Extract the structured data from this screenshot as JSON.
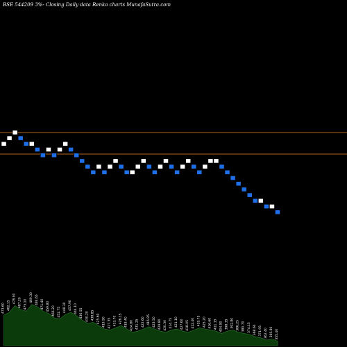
{
  "chart_data": {
    "type": "renko",
    "title": "BSE 544209 3%-  Closing Daily data  Renko  charts MunafaSutra.com",
    "colors": {
      "background": "#000000",
      "up_brick": "#ffffff",
      "down_brick": "#1f6fe8",
      "brick_border": "#000000",
      "reference_line": "#b5651d",
      "volume_fill": "#0b3a0b",
      "volume_edge": "#2e7d32",
      "text": "#ffffff"
    },
    "reference_lines": [
      0.9,
      0.0
    ],
    "bricks": [
      {
        "level": -1,
        "direction": "up"
      },
      {
        "level": 0,
        "direction": "up"
      },
      {
        "level": 1,
        "direction": "up"
      },
      {
        "level": 0,
        "direction": "down"
      },
      {
        "level": -1,
        "direction": "down"
      },
      {
        "level": -1,
        "direction": "up"
      },
      {
        "level": -2,
        "direction": "down"
      },
      {
        "level": -3,
        "direction": "down"
      },
      {
        "level": -2,
        "direction": "up"
      },
      {
        "level": -3,
        "direction": "down"
      },
      {
        "level": -2,
        "direction": "up"
      },
      {
        "level": -1,
        "direction": "up"
      },
      {
        "level": -2,
        "direction": "down"
      },
      {
        "level": -3,
        "direction": "down"
      },
      {
        "level": -4,
        "direction": "down"
      },
      {
        "level": -5,
        "direction": "down"
      },
      {
        "level": -6,
        "direction": "down"
      },
      {
        "level": -5,
        "direction": "up"
      },
      {
        "level": -6,
        "direction": "down"
      },
      {
        "level": -5,
        "direction": "up"
      },
      {
        "level": -4,
        "direction": "up"
      },
      {
        "level": -5,
        "direction": "down"
      },
      {
        "level": -6,
        "direction": "down"
      },
      {
        "level": -6,
        "direction": "up"
      },
      {
        "level": -5,
        "direction": "up"
      },
      {
        "level": -4,
        "direction": "up"
      },
      {
        "level": -5,
        "direction": "down"
      },
      {
        "level": -6,
        "direction": "down"
      },
      {
        "level": -5,
        "direction": "up"
      },
      {
        "level": -4,
        "direction": "up"
      },
      {
        "level": -5,
        "direction": "down"
      },
      {
        "level": -6,
        "direction": "down"
      },
      {
        "level": -5,
        "direction": "up"
      },
      {
        "level": -4,
        "direction": "up"
      },
      {
        "level": -5,
        "direction": "down"
      },
      {
        "level": -6,
        "direction": "down"
      },
      {
        "level": -5,
        "direction": "up"
      },
      {
        "level": -4,
        "direction": "up"
      },
      {
        "level": -4,
        "direction": "up"
      },
      {
        "level": -5,
        "direction": "down"
      },
      {
        "level": -6,
        "direction": "down"
      },
      {
        "level": -7,
        "direction": "down"
      },
      {
        "level": -8,
        "direction": "down"
      },
      {
        "level": -9,
        "direction": "down"
      },
      {
        "level": -10,
        "direction": "down"
      },
      {
        "level": -11,
        "direction": "down"
      },
      {
        "level": -11,
        "direction": "up"
      },
      {
        "level": -12,
        "direction": "down"
      },
      {
        "level": -12,
        "direction": "up"
      },
      {
        "level": -13,
        "direction": "down"
      }
    ],
    "volume_values": [
      0.55,
      0.6,
      0.72,
      0.65,
      0.62,
      0.74,
      0.7,
      0.62,
      0.58,
      0.5,
      0.48,
      0.56,
      0.6,
      0.54,
      0.46,
      0.4,
      0.42,
      0.36,
      0.3,
      0.28,
      0.32,
      0.36,
      0.3,
      0.24,
      0.26,
      0.3,
      0.34,
      0.3,
      0.26,
      0.24,
      0.28,
      0.3,
      0.26,
      0.24,
      0.28,
      0.32,
      0.3,
      0.28,
      0.26,
      0.22,
      0.26,
      0.28,
      0.24,
      0.22,
      0.2,
      0.16,
      0.14,
      0.1,
      0.12,
      0.08
    ],
    "volume_labels": [
      "473.60",
      "482.15",
      "478.90",
      "487.20",
      "475.10",
      "469.30",
      "484.65",
      "471.40",
      "459.80",
      "466.20",
      "452.75",
      "448.30",
      "457.90",
      "444.10",
      "436.55",
      "430.20",
      "438.85",
      "425.60",
      "419.90",
      "427.35",
      "433.70",
      "426.15",
      "418.40",
      "424.80",
      "431.25",
      "422.60",
      "416.95",
      "423.50",
      "429.80",
      "420.30",
      "414.75",
      "421.10",
      "427.60",
      "418.05",
      "412.40",
      "419.75",
      "425.20",
      "416.60",
      "411.15",
      "404.90",
      "398.35",
      "392.80",
      "386.25",
      "380.70",
      "374.15",
      "368.60",
      "371.95",
      "362.40",
      "365.80",
      "355.40"
    ]
  }
}
